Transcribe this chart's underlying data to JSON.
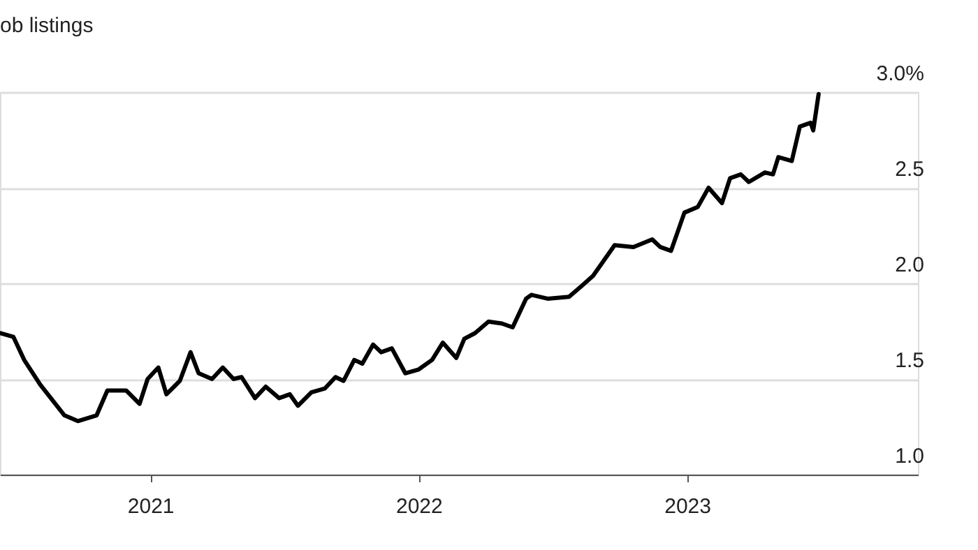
{
  "chart_data": {
    "type": "line",
    "title": "ob listings",
    "x": [
      2020.44,
      2020.49,
      2020.53,
      2020.59,
      2020.68,
      2020.73,
      2020.8,
      2020.84,
      2020.91,
      2020.96,
      2020.99,
      2021.03,
      2021.06,
      2021.11,
      2021.15,
      2021.18,
      2021.23,
      2021.27,
      2021.31,
      2021.34,
      2021.39,
      2021.43,
      2021.48,
      2021.52,
      2021.55,
      2021.6,
      2021.65,
      2021.69,
      2021.72,
      2021.76,
      2021.79,
      2021.83,
      2021.86,
      2021.9,
      2021.95,
      2022.0,
      2022.05,
      2022.09,
      2022.14,
      2022.17,
      2022.21,
      2022.26,
      2022.31,
      2022.35,
      2022.4,
      2022.42,
      2022.48,
      2022.56,
      2022.61,
      2022.65,
      2022.73,
      2022.8,
      2022.87,
      2022.9,
      2022.94,
      2022.99,
      2023.04,
      2023.08,
      2023.13,
      2023.16,
      2023.2,
      2023.23,
      2023.29,
      2023.32,
      2023.34,
      2023.39,
      2023.42,
      2023.46,
      2023.47,
      2023.49
    ],
    "series": [
      {
        "color": "#000000",
        "values": [
          1.74,
          1.72,
          1.6,
          1.47,
          1.31,
          1.28,
          1.31,
          1.44,
          1.44,
          1.37,
          1.5,
          1.56,
          1.42,
          1.49,
          1.64,
          1.53,
          1.5,
          1.56,
          1.5,
          1.51,
          1.4,
          1.46,
          1.4,
          1.42,
          1.36,
          1.43,
          1.45,
          1.51,
          1.49,
          1.6,
          1.58,
          1.68,
          1.64,
          1.66,
          1.53,
          1.55,
          1.6,
          1.69,
          1.61,
          1.71,
          1.74,
          1.8,
          1.79,
          1.77,
          1.92,
          1.94,
          1.92,
          1.93,
          1.99,
          2.04,
          2.2,
          2.19,
          2.23,
          2.19,
          2.17,
          2.37,
          2.4,
          2.5,
          2.42,
          2.55,
          2.57,
          2.53,
          2.58,
          2.57,
          2.66,
          2.64,
          2.82,
          2.84,
          2.8,
          2.99
        ]
      }
    ],
    "xlim": [
      2020.44,
      2023.86
    ],
    "xticks": [
      2021,
      2022,
      2023
    ],
    "ylim": [
      1.0,
      3.0
    ],
    "yticks": [
      {
        "value": 1.0,
        "label": "1.0"
      },
      {
        "value": 1.5,
        "label": "1.5"
      },
      {
        "value": 2.0,
        "label": "2.0"
      },
      {
        "value": 2.5,
        "label": "2.5"
      },
      {
        "value": 3.0,
        "label": "3.0%"
      }
    ],
    "grid": "y",
    "marker": "none",
    "line_style": "solid"
  }
}
